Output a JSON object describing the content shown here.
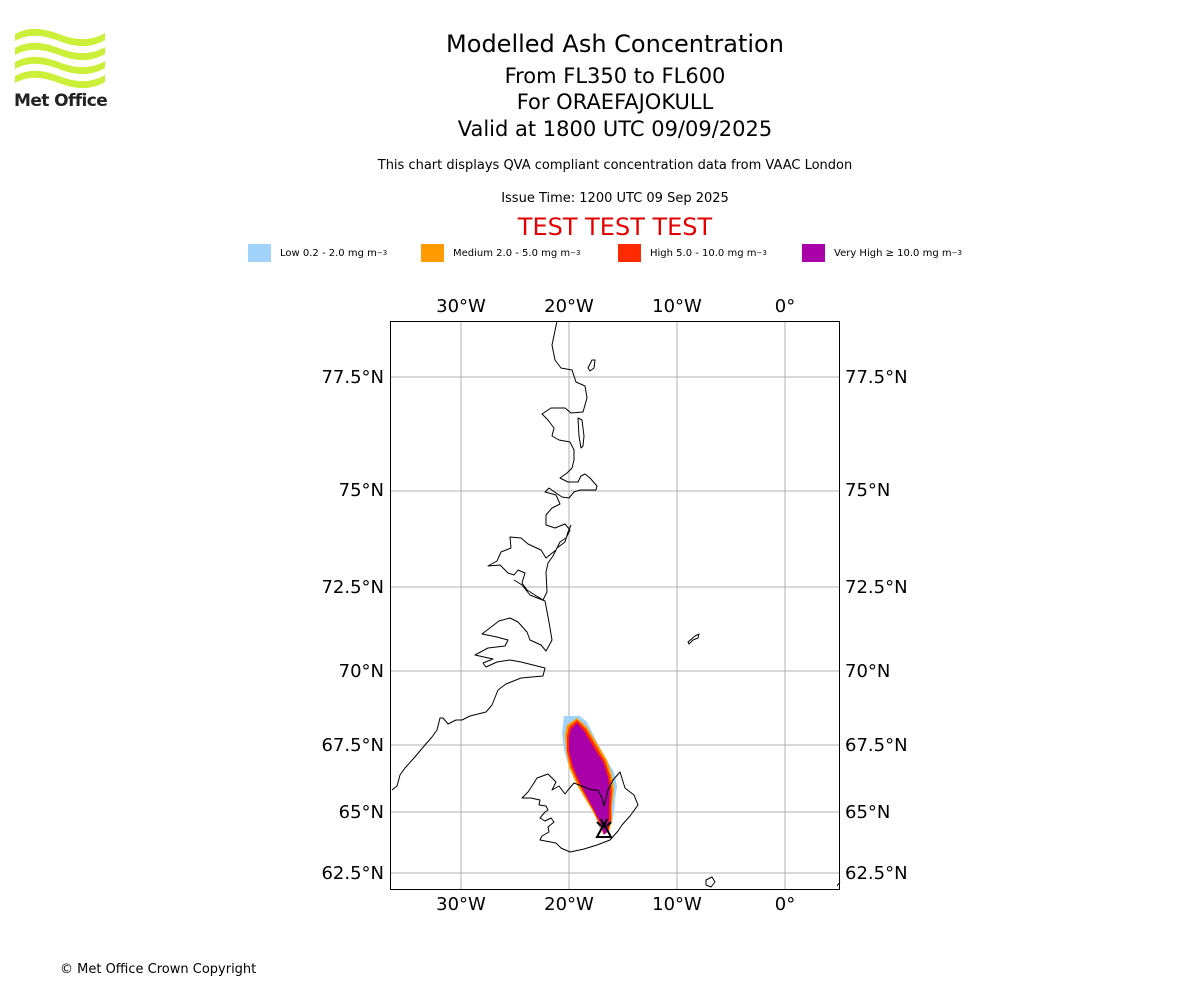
{
  "header": {
    "logo_text": "Met Office",
    "title": "Modelled Ash Concentration",
    "levels": "From FL350 to FL600",
    "volcano": "For ORAEFAJOKULL",
    "valid": "Valid at 1800 UTC 09/09/2025",
    "disclaimer": "This chart displays QVA compliant concentration data from VAAC London",
    "issue_time": "Issue Time: 1200 UTC 09 Sep 2025",
    "test_banner": "TEST TEST TEST"
  },
  "legend": [
    {
      "label": "Low 0.2 - 2.0 mg m",
      "sup": "−3",
      "color": "#a0d2fa"
    },
    {
      "label": "Medium 2.0 - 5.0 mg m",
      "sup": "−3",
      "color": "#ff9a00"
    },
    {
      "label": "High 5.0 - 10.0 mg m",
      "sup": "−3",
      "color": "#ff2a00"
    },
    {
      "label": "Very High  ≥  10.0 mg m",
      "sup": "−3",
      "color": "#aa00aa"
    }
  ],
  "map": {
    "lon_labels": [
      "30°W",
      "20°W",
      "10°W",
      "0°"
    ],
    "lon_values": [
      -30,
      -20,
      -10,
      0
    ],
    "lat_labels": [
      "77.5°N",
      "75°N",
      "72.5°N",
      "70°N",
      "67.5°N",
      "65°N",
      "62.5°N"
    ],
    "lat_values": [
      77.5,
      75,
      72.5,
      70,
      67.5,
      65,
      62.5
    ],
    "lon_range": [
      -36.5,
      5
    ],
    "lat_range": [
      62,
      78.7
    ],
    "projection": "mercator",
    "grid": true,
    "volcano_marker": "volcano-icon",
    "ash_levels": [
      "Low",
      "Medium",
      "High",
      "Very High"
    ]
  },
  "footer": {
    "copyright": "© Met Office Crown Copyright"
  }
}
